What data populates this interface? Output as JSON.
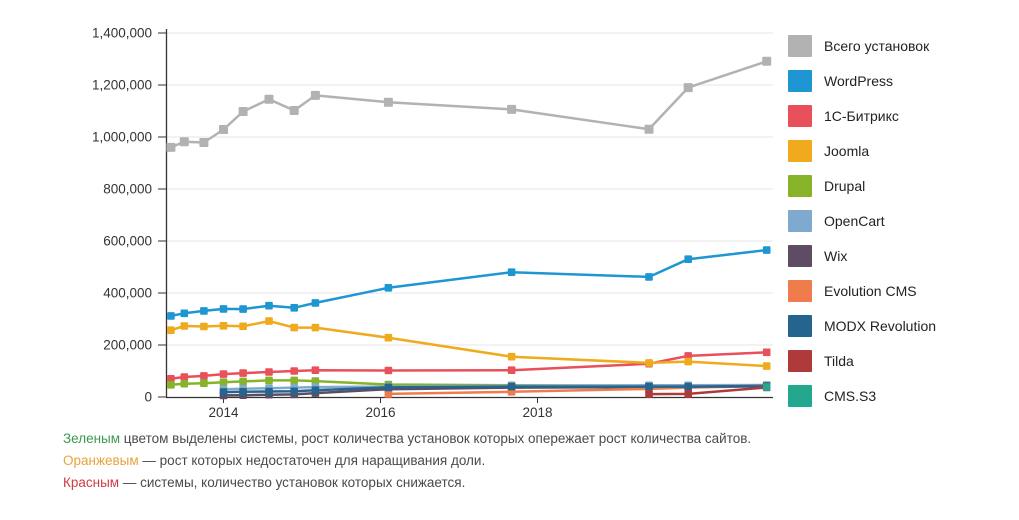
{
  "chart_data": {
    "type": "line",
    "x": [
      2013.33,
      2013.5,
      2013.75,
      2014.0,
      2014.25,
      2014.58,
      2014.9,
      2015.17,
      2016.1,
      2017.67,
      2019.42,
      2019.92,
      2020.92
    ],
    "x_axis": {
      "min": 2013.28,
      "max": 2021.0,
      "ticks": [
        {
          "value": 2014,
          "label": "2014"
        },
        {
          "value": 2016,
          "label": "2016"
        },
        {
          "value": 2018,
          "label": "2018"
        }
      ]
    },
    "y_axis": {
      "min": 0,
      "max": 1400000,
      "ticks": [
        {
          "value": 1400000,
          "label": "1,400,000"
        },
        {
          "value": 1200000,
          "label": "1,200,000"
        },
        {
          "value": 1000000,
          "label": "1,000,000"
        },
        {
          "value": 800000,
          "label": "800,000"
        },
        {
          "value": 600000,
          "label": "600,000"
        },
        {
          "value": 400000,
          "label": "400,000"
        },
        {
          "value": 200000,
          "label": "200,000"
        },
        {
          "value": 0,
          "label": "0"
        }
      ]
    },
    "grid": true,
    "legend_position": "right",
    "series": [
      {
        "name": "Всего установок",
        "color": "#b2b2b2",
        "values": [
          960000,
          982000,
          979000,
          1029000,
          1098000,
          1145000,
          1102000,
          1160000,
          1134000,
          1106000,
          1030000,
          1190000,
          1291000
        ]
      },
      {
        "name": "WordPress",
        "color": "#1e96d2",
        "values": [
          312000,
          322000,
          331000,
          339000,
          338000,
          351000,
          343000,
          362000,
          420000,
          480000,
          462000,
          530000,
          565000
        ]
      },
      {
        "name": "1С-Битрикс",
        "color": "#e8505a",
        "values": [
          70000,
          77000,
          81000,
          88000,
          92000,
          96000,
          100000,
          103000,
          102000,
          103000,
          128000,
          158000,
          172000
        ]
      },
      {
        "name": "Joomla",
        "color": "#efaa1d",
        "values": [
          257000,
          273000,
          271000,
          274000,
          272000,
          292000,
          267000,
          267000,
          228000,
          155000,
          131000,
          136000,
          119000
        ]
      },
      {
        "name": "Drupal",
        "color": "#86b32a",
        "values": [
          47000,
          51000,
          53000,
          57000,
          60000,
          64000,
          64000,
          61000,
          48000,
          45000,
          44000,
          44000,
          45000
        ]
      },
      {
        "name": "OpenCart",
        "color": "#7fa9cf",
        "values": [
          null,
          null,
          null,
          30000,
          32000,
          34000,
          36000,
          38000,
          40000,
          43000,
          45000,
          45000,
          46000
        ]
      },
      {
        "name": "Wix",
        "color": "#5e4c64",
        "values": [
          null,
          null,
          null,
          6000,
          7000,
          9000,
          10000,
          15000,
          30000,
          36000,
          38000,
          39000,
          43000
        ]
      },
      {
        "name": "Evolution CMS",
        "color": "#ef7c4d",
        "values": [
          null,
          null,
          null,
          null,
          null,
          null,
          null,
          null,
          12000,
          20000,
          31000,
          36000,
          42000
        ]
      },
      {
        "name": "MODX Revolution",
        "color": "#26648e",
        "values": [
          null,
          null,
          null,
          19000,
          20000,
          21000,
          22000,
          26000,
          37000,
          40000,
          40000,
          40000,
          41000
        ]
      },
      {
        "name": "Tilda",
        "color": "#af3a3c",
        "values": [
          null,
          null,
          null,
          null,
          null,
          null,
          null,
          null,
          null,
          null,
          11000,
          12000,
          37000
        ]
      },
      {
        "name": "CMS.S3",
        "color": "#23a88f",
        "values": [
          null,
          null,
          null,
          null,
          null,
          null,
          null,
          null,
          null,
          null,
          null,
          null,
          38000
        ]
      }
    ]
  },
  "notes": [
    {
      "word": "Зеленым",
      "color": "#3d9950",
      "text": " цветом выделены системы, рост количества установок которых опережает рост количества сайтов."
    },
    {
      "word": "Оранжевым",
      "color": "#e9a23b",
      "text": " — рост которых недостаточен для наращивания доли."
    },
    {
      "word": "Красным",
      "color": "#cc3d44",
      "text": " — системы, количество установок которых снижается."
    }
  ]
}
